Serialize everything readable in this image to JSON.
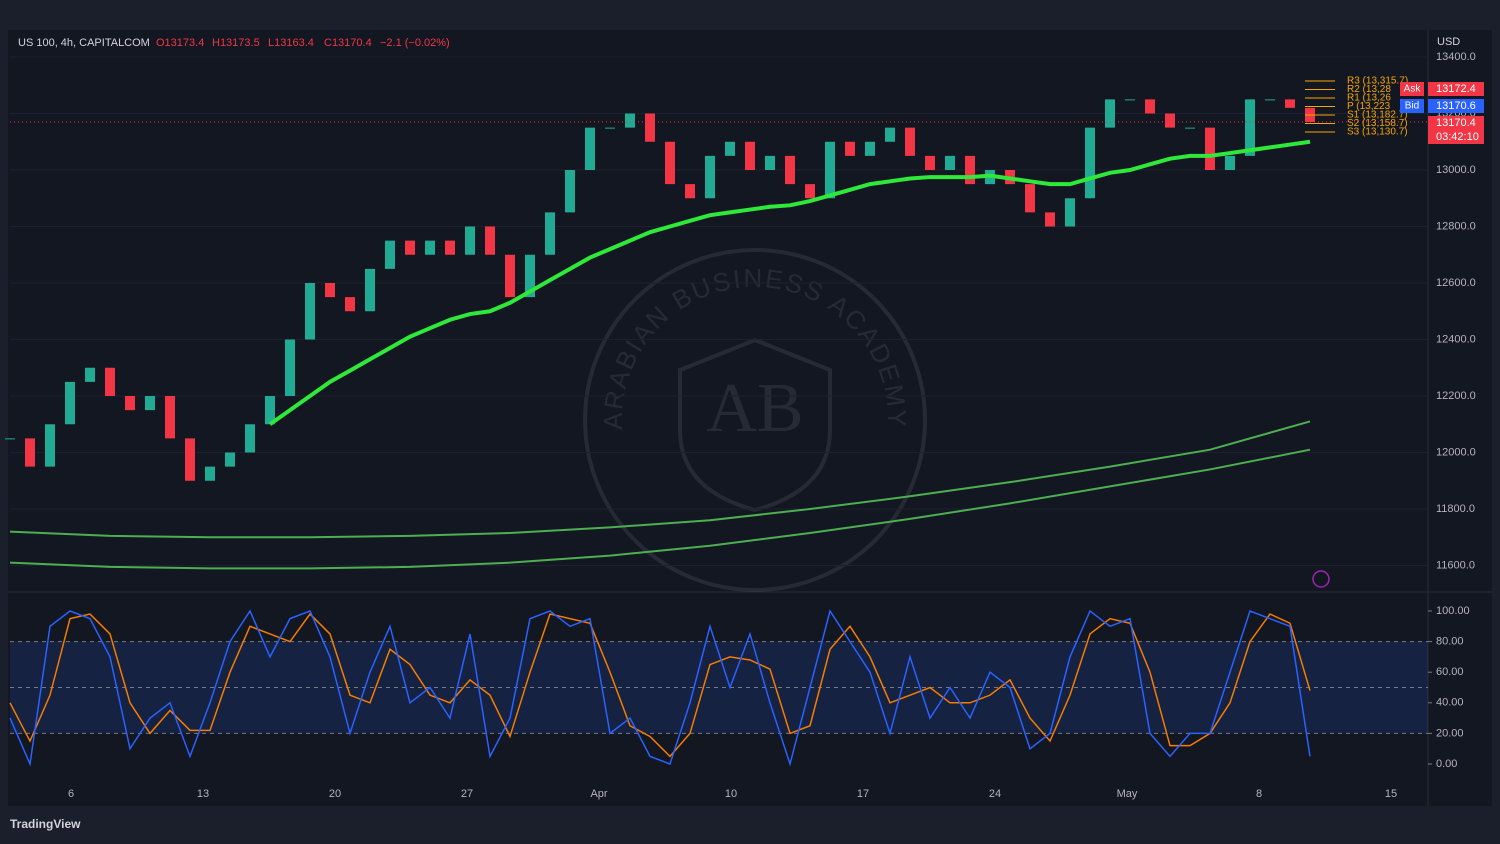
{
  "header": {
    "symbol": "US 100, 4h, CAPITALCOM",
    "open": "O13173.4",
    "high": "H13173.5",
    "low": "L13163.4",
    "close": "C13170.4",
    "change": "−2.1 (−0.02%)"
  },
  "price_pane": {
    "currency": "USD",
    "ticks": [
      {
        "value": 13400,
        "label": "13400.0"
      },
      {
        "value": 13200,
        "label": "13200.0"
      },
      {
        "value": 13000,
        "label": "13000.0"
      },
      {
        "value": 12800,
        "label": "12800.0"
      },
      {
        "value": 12600,
        "label": "12600.0"
      },
      {
        "value": 12400,
        "label": "12400.0"
      },
      {
        "value": 12200,
        "label": "12200.0"
      },
      {
        "value": 12000,
        "label": "12000.0"
      },
      {
        "value": 11800,
        "label": "11800.0"
      },
      {
        "value": 11600,
        "label": "11600.0"
      }
    ],
    "closes": [
      12050,
      11950,
      12100,
      12250,
      12300,
      12200,
      12150,
      12200,
      12050,
      11900,
      11950,
      12000,
      12100,
      12200,
      12400,
      12600,
      12550,
      12500,
      12650,
      12750,
      12700,
      12750,
      12700,
      12800,
      12700,
      12550,
      12700,
      12850,
      13000,
      13150,
      13150,
      13200,
      13100,
      12950,
      12900,
      13050,
      13100,
      13000,
      13050,
      12950,
      12900,
      13100,
      13050,
      13100,
      13150,
      13050,
      13000,
      13050,
      12950,
      13000,
      12950,
      12850,
      12800,
      12900,
      13150,
      13250,
      13250,
      13200,
      13150,
      13150,
      13000,
      13050,
      13250,
      13250,
      13220,
      13170
    ],
    "ma_fast": [
      null,
      null,
      null,
      null,
      null,
      null,
      null,
      null,
      null,
      null,
      null,
      null,
      null,
      12100,
      12150,
      12200,
      12250,
      12290,
      12330,
      12370,
      12410,
      12440,
      12470,
      12490,
      12500,
      12530,
      12570,
      12610,
      12650,
      12690,
      12720,
      12750,
      12780,
      12800,
      12820,
      12840,
      12850,
      12860,
      12870,
      12875,
      12890,
      12910,
      12930,
      12950,
      12960,
      12970,
      12975,
      12975,
      12975,
      12980,
      12970,
      12960,
      12950,
      12950,
      12970,
      12990,
      13000,
      13020,
      13040,
      13050,
      13050,
      13060,
      13070,
      13080,
      13090,
      13100
    ],
    "ma_slow_1": [
      11720,
      11705,
      11700,
      11700,
      11705,
      11715,
      11735,
      11760,
      11800,
      11845,
      11895,
      11950,
      12010,
      12110
    ],
    "ma_slow_2": [
      11610,
      11595,
      11590,
      11590,
      11595,
      11610,
      11635,
      11670,
      11715,
      11765,
      11820,
      11880,
      11940,
      12010
    ],
    "last_price": 13170.4,
    "tags": {
      "ask_label": "Ask",
      "ask": "13172.4",
      "bid_label": "Bid",
      "bid": "13170.6",
      "last": "13170.4",
      "countdown": "03:42:10"
    },
    "pivots": [
      "R3 (13,315.7)",
      "R2 (13,28",
      "R1 (13,26",
      "P (13,223",
      "S1 (13,182.7)",
      "S2 (13,158.7)",
      "S3 (13,130.7)"
    ]
  },
  "stoch_pane": {
    "ticks": [
      {
        "value": 100,
        "label": "100.00"
      },
      {
        "value": 80,
        "label": "80.00"
      },
      {
        "value": 60,
        "label": "60.00"
      },
      {
        "value": 40,
        "label": "40.00"
      },
      {
        "value": 20,
        "label": "20.00"
      },
      {
        "value": 0,
        "label": "0.00"
      }
    ],
    "band": [
      20,
      80
    ],
    "mid": 50,
    "k": [
      30,
      0,
      90,
      100,
      95,
      70,
      10,
      30,
      40,
      5,
      40,
      80,
      100,
      70,
      95,
      100,
      70,
      20,
      60,
      90,
      40,
      50,
      30,
      85,
      5,
      30,
      95,
      100,
      90,
      95,
      20,
      30,
      5,
      0,
      40,
      90,
      50,
      85,
      40,
      0,
      50,
      100,
      80,
      60,
      20,
      70,
      30,
      50,
      30,
      60,
      50,
      10,
      20,
      70,
      100,
      90,
      95,
      20,
      5,
      20,
      20,
      60,
      100,
      95,
      90,
      5
    ],
    "d": [
      40,
      15,
      45,
      95,
      98,
      85,
      40,
      20,
      35,
      22,
      22,
      60,
      90,
      85,
      80,
      98,
      85,
      45,
      40,
      75,
      65,
      45,
      40,
      55,
      45,
      18,
      60,
      98,
      95,
      92,
      60,
      25,
      18,
      5,
      20,
      65,
      70,
      68,
      62,
      20,
      25,
      75,
      90,
      70,
      40,
      45,
      50,
      40,
      40,
      45,
      55,
      30,
      15,
      45,
      85,
      95,
      92,
      60,
      12,
      12,
      20,
      40,
      80,
      98,
      92,
      48
    ]
  },
  "time_axis": [
    "6",
    "13",
    "20",
    "27",
    "Apr",
    "10",
    "17",
    "24",
    "May",
    "8",
    "15"
  ],
  "watermark": {
    "ring": "ARABIAN BUSINESS ACADEMY",
    "logo": "AB"
  },
  "footer": "TradingView"
}
